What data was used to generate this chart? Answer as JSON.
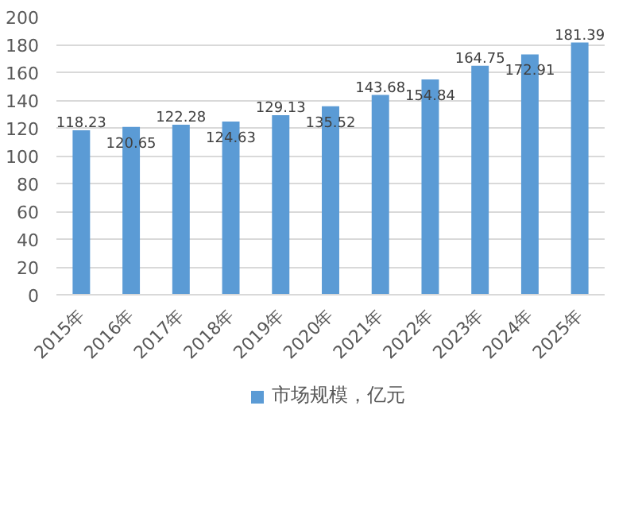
{
  "chart_data": {
    "type": "bar",
    "categories": [
      "2015年",
      "2016年",
      "2017年",
      "2018年",
      "2019年",
      "2020年",
      "2021年",
      "2022年",
      "2023年",
      "2024年",
      "2025年"
    ],
    "series": [
      {
        "name": "市场规模，亿元",
        "color": "#5b9bd5",
        "values": [
          118.23,
          120.65,
          122.28,
          124.63,
          129.13,
          135.52,
          143.68,
          154.84,
          164.75,
          172.91,
          181.39
        ]
      }
    ],
    "ylim": [
      0,
      200
    ],
    "yticks": [
      0,
      20,
      40,
      60,
      80,
      100,
      120,
      140,
      160,
      180,
      200
    ],
    "grid": "y",
    "legend": "bottom",
    "data_labels": true
  }
}
